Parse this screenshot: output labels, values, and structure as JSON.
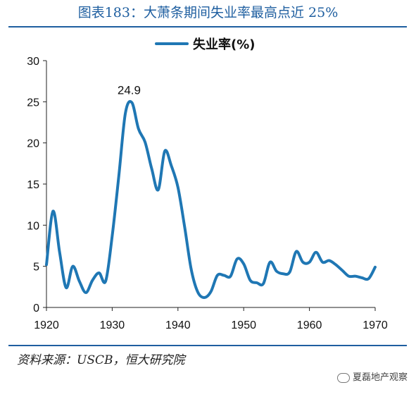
{
  "header": {
    "title": "图表183：大萧条期间失业率最高点近 25%"
  },
  "footer": {
    "source": "资料来源：USCB，恒大研究院",
    "watermark": "夏磊地产观察"
  },
  "chart_data": {
    "type": "line",
    "title": "",
    "xlabel": "",
    "ylabel": "",
    "xlim": [
      1920,
      1970
    ],
    "ylim": [
      0,
      30
    ],
    "x_ticks": [
      1920,
      1930,
      1940,
      1950,
      1960,
      1970
    ],
    "y_ticks": [
      0,
      5,
      10,
      15,
      20,
      25,
      30
    ],
    "legend_position": "top-center",
    "grid": false,
    "series": [
      {
        "name": "失业率(%)",
        "color": "#1f77b4",
        "x": [
          1920,
          1921,
          1922,
          1923,
          1924,
          1925,
          1926,
          1927,
          1928,
          1929,
          1930,
          1931,
          1932,
          1933,
          1934,
          1935,
          1936,
          1937,
          1938,
          1939,
          1940,
          1941,
          1942,
          1943,
          1944,
          1945,
          1946,
          1947,
          1948,
          1949,
          1950,
          1951,
          1952,
          1953,
          1954,
          1955,
          1956,
          1957,
          1958,
          1959,
          1960,
          1961,
          1962,
          1963,
          1964,
          1965,
          1966,
          1967,
          1968,
          1969,
          1970
        ],
        "values": [
          5.2,
          11.7,
          6.7,
          2.4,
          5.0,
          3.2,
          1.8,
          3.3,
          4.2,
          3.2,
          8.7,
          15.9,
          23.6,
          24.9,
          21.7,
          20.1,
          16.9,
          14.3,
          19.0,
          17.2,
          14.6,
          9.9,
          4.7,
          1.9,
          1.2,
          1.9,
          3.9,
          3.9,
          3.8,
          5.9,
          5.3,
          3.3,
          3.0,
          2.9,
          5.5,
          4.4,
          4.1,
          4.3,
          6.8,
          5.5,
          5.5,
          6.7,
          5.5,
          5.7,
          5.2,
          4.5,
          3.8,
          3.8,
          3.6,
          3.5,
          4.9
        ]
      }
    ],
    "annotations": [
      {
        "x": 1933,
        "y": 24.9,
        "text": "24.9"
      }
    ]
  }
}
